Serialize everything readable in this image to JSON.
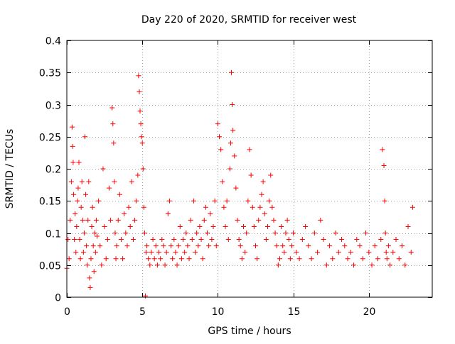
{
  "chart_data": {
    "type": "scatter",
    "title": "Day 220 of 2020, SRMTID for receiver west",
    "xlabel": "GPS time / hours",
    "ylabel": "SRMTID / TECUs",
    "xlim": [
      0,
      24.2
    ],
    "ylim": [
      0,
      0.4
    ],
    "xticks": [
      0,
      5,
      10,
      15,
      20
    ],
    "xtick_labels": [
      "0",
      "5",
      "10",
      "15",
      "20"
    ],
    "yticks": [
      0,
      0.05,
      0.1,
      0.15,
      0.2,
      0.25,
      0.3,
      0.35,
      0.4
    ],
    "ytick_labels": [
      "0",
      "0.05",
      "0.1",
      "0.15",
      "0.2",
      "0.25",
      "0.3",
      "0.35",
      "0.4"
    ],
    "grid": true,
    "marker": "+",
    "colors": {
      "series": "#ff0000",
      "grid": "#a0a0a0",
      "axis": "#000000"
    },
    "series": [
      {
        "name": "SRMTID",
        "x": [
          0.0,
          0.08,
          0.15,
          0.22,
          0.3,
          0.35,
          0.38,
          0.42,
          0.45,
          0.5,
          0.55,
          0.6,
          0.65,
          0.7,
          0.75,
          0.8,
          0.85,
          0.9,
          0.95,
          1.0,
          1.05,
          1.1,
          1.15,
          1.2,
          1.25,
          1.3,
          1.35,
          1.4,
          1.45,
          1.5,
          1.55,
          1.6,
          1.65,
          1.7,
          1.75,
          1.8,
          1.85,
          1.9,
          1.95,
          2.0,
          2.1,
          2.2,
          2.3,
          2.4,
          2.5,
          2.6,
          2.7,
          2.8,
          2.9,
          3.0,
          3.05,
          3.1,
          3.15,
          3.2,
          3.25,
          3.3,
          3.4,
          3.5,
          3.6,
          3.7,
          3.8,
          3.9,
          4.0,
          4.1,
          4.2,
          4.3,
          4.4,
          4.5,
          4.6,
          4.7,
          4.75,
          4.8,
          4.85,
          4.9,
          4.95,
          5.0,
          5.05,
          5.1,
          5.15,
          5.2,
          5.25,
          5.3,
          5.4,
          5.5,
          5.6,
          5.7,
          5.8,
          5.9,
          6.0,
          6.1,
          6.2,
          6.3,
          6.4,
          6.5,
          6.6,
          6.7,
          6.8,
          6.9,
          7.0,
          7.1,
          7.2,
          7.3,
          7.4,
          7.5,
          7.6,
          7.7,
          7.8,
          7.9,
          8.0,
          8.1,
          8.2,
          8.3,
          8.4,
          8.5,
          8.6,
          8.7,
          8.8,
          8.9,
          9.0,
          9.1,
          9.2,
          9.3,
          9.4,
          9.5,
          9.6,
          9.7,
          9.8,
          9.9,
          10.0,
          10.1,
          10.2,
          10.3,
          10.4,
          10.5,
          10.6,
          10.7,
          10.8,
          10.85,
          10.9,
          10.95,
          11.0,
          11.1,
          11.2,
          11.3,
          11.4,
          11.5,
          11.6,
          11.7,
          11.8,
          11.9,
          12.0,
          12.1,
          12.2,
          12.3,
          12.4,
          12.5,
          12.6,
          12.7,
          12.8,
          12.9,
          13.0,
          13.1,
          13.2,
          13.3,
          13.4,
          13.5,
          13.6,
          13.7,
          13.8,
          13.9,
          14.0,
          14.1,
          14.2,
          14.3,
          14.4,
          14.5,
          14.6,
          14.7,
          14.8,
          14.9,
          15.0,
          15.2,
          15.4,
          15.6,
          15.8,
          16.0,
          16.2,
          16.4,
          16.6,
          16.8,
          17.0,
          17.2,
          17.4,
          17.6,
          17.8,
          18.0,
          18.2,
          18.4,
          18.6,
          18.8,
          19.0,
          19.2,
          19.4,
          19.6,
          19.8,
          20.0,
          20.2,
          20.4,
          20.6,
          20.8,
          20.9,
          21.0,
          21.05,
          21.1,
          21.15,
          21.2,
          21.3,
          21.4,
          21.6,
          21.8,
          22.0,
          22.2,
          22.4,
          22.6,
          22.8,
          22.9
        ],
        "y": [
          0.045,
          0.09,
          0.06,
          0.12,
          0.18,
          0.265,
          0.235,
          0.21,
          0.16,
          0.09,
          0.13,
          0.07,
          0.11,
          0.15,
          0.17,
          0.21,
          0.09,
          0.06,
          0.14,
          0.18,
          0.12,
          0.07,
          0.1,
          0.25,
          0.16,
          0.08,
          0.05,
          0.12,
          0.18,
          0.03,
          0.015,
          0.06,
          0.11,
          0.14,
          0.08,
          0.04,
          0.1,
          0.07,
          0.12,
          0.095,
          0.15,
          0.08,
          0.05,
          0.2,
          0.11,
          0.06,
          0.09,
          0.17,
          0.12,
          0.295,
          0.27,
          0.24,
          0.18,
          0.1,
          0.06,
          0.08,
          0.12,
          0.16,
          0.09,
          0.06,
          0.13,
          0.1,
          0.08,
          0.14,
          0.11,
          0.18,
          0.09,
          0.12,
          0.15,
          0.19,
          0.345,
          0.32,
          0.29,
          0.27,
          0.25,
          0.24,
          0.2,
          0.14,
          0.1,
          0.002,
          0.07,
          0.08,
          0.06,
          0.05,
          0.07,
          0.09,
          0.06,
          0.08,
          0.05,
          0.07,
          0.06,
          0.09,
          0.08,
          0.05,
          0.07,
          0.13,
          0.15,
          0.08,
          0.06,
          0.09,
          0.07,
          0.05,
          0.08,
          0.11,
          0.06,
          0.09,
          0.07,
          0.1,
          0.08,
          0.06,
          0.12,
          0.09,
          0.15,
          0.07,
          0.1,
          0.08,
          0.11,
          0.09,
          0.06,
          0.12,
          0.14,
          0.1,
          0.08,
          0.13,
          0.09,
          0.11,
          0.15,
          0.08,
          0.27,
          0.25,
          0.23,
          0.18,
          0.14,
          0.11,
          0.15,
          0.09,
          0.2,
          0.24,
          0.35,
          0.3,
          0.26,
          0.22,
          0.17,
          0.12,
          0.09,
          0.08,
          0.06,
          0.11,
          0.07,
          0.1,
          0.15,
          0.23,
          0.19,
          0.14,
          0.11,
          0.08,
          0.06,
          0.12,
          0.14,
          0.16,
          0.18,
          0.13,
          0.09,
          0.11,
          0.15,
          0.19,
          0.14,
          0.12,
          0.1,
          0.08,
          0.05,
          0.06,
          0.11,
          0.08,
          0.07,
          0.1,
          0.12,
          0.09,
          0.06,
          0.08,
          0.1,
          0.07,
          0.06,
          0.09,
          0.11,
          0.08,
          0.06,
          0.1,
          0.07,
          0.12,
          0.09,
          0.05,
          0.08,
          0.06,
          0.1,
          0.07,
          0.09,
          0.08,
          0.06,
          0.07,
          0.05,
          0.09,
          0.08,
          0.06,
          0.1,
          0.07,
          0.05,
          0.08,
          0.06,
          0.09,
          0.23,
          0.205,
          0.15,
          0.1,
          0.07,
          0.06,
          0.08,
          0.05,
          0.07,
          0.09,
          0.06,
          0.08,
          0.05,
          0.11,
          0.07,
          0.14
        ]
      }
    ]
  }
}
